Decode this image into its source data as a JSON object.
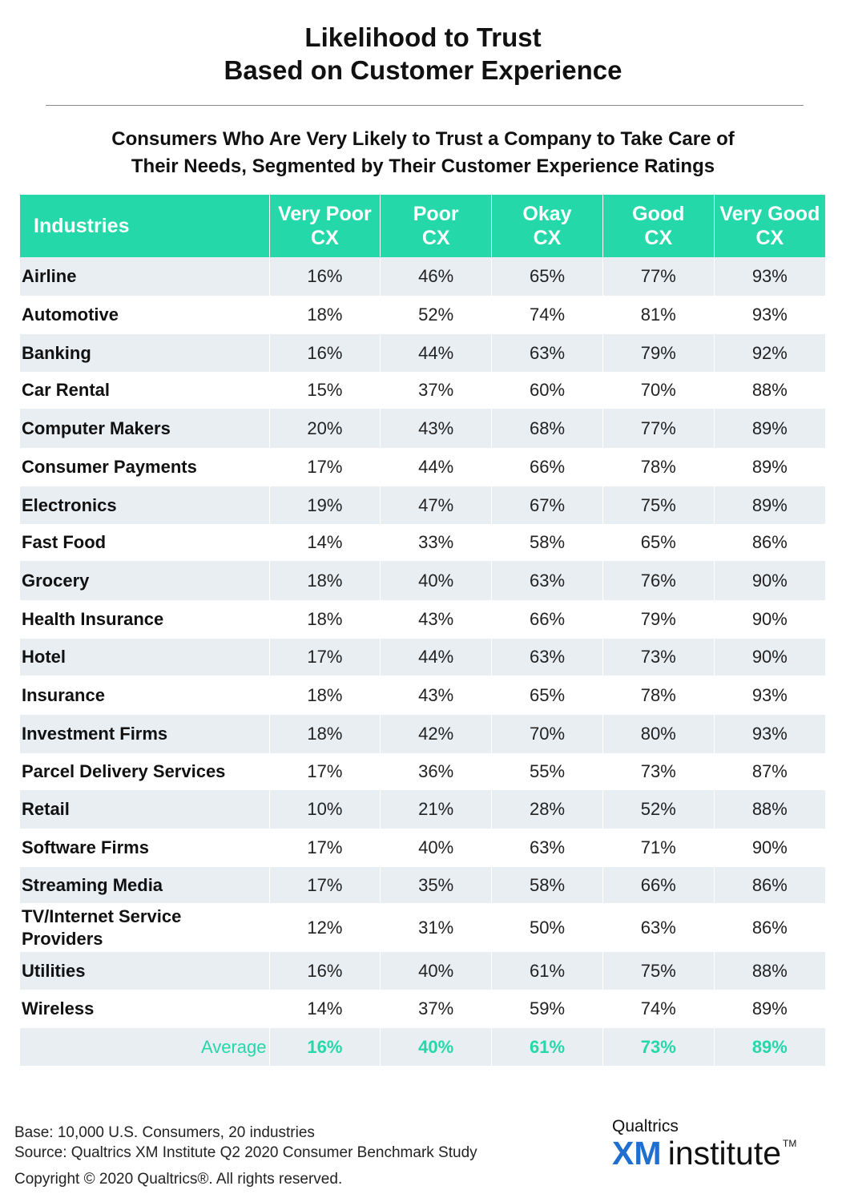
{
  "title_lines": [
    "Likelihood to Trust",
    "Based on Customer Experience"
  ],
  "subtitle_lines": [
    "Consumers Who Are Very Likely to Trust a Company to Take Care of",
    "Their Needs, Segmented by Their Customer Experience Ratings"
  ],
  "colors": {
    "accent": "#25d8a9",
    "stripe": "#e9eef3",
    "logo_blue": "#1f6fd0"
  },
  "chart_data": {
    "type": "table",
    "columns": [
      {
        "line1": "Industries",
        "line2": ""
      },
      {
        "line1": "Very Poor",
        "line2": "CX"
      },
      {
        "line1": "Poor",
        "line2": "CX"
      },
      {
        "line1": "Okay",
        "line2": "CX"
      },
      {
        "line1": "Good",
        "line2": "CX"
      },
      {
        "line1": "Very Good",
        "line2": "CX"
      }
    ],
    "rows": [
      {
        "industry": "Airline",
        "values": [
          "16%",
          "46%",
          "65%",
          "77%",
          "93%"
        ]
      },
      {
        "industry": "Automotive",
        "values": [
          "18%",
          "52%",
          "74%",
          "81%",
          "93%"
        ]
      },
      {
        "industry": "Banking",
        "values": [
          "16%",
          "44%",
          "63%",
          "79%",
          "92%"
        ]
      },
      {
        "industry": "Car Rental",
        "values": [
          "15%",
          "37%",
          "60%",
          "70%",
          "88%"
        ]
      },
      {
        "industry": "Computer Makers",
        "values": [
          "20%",
          "43%",
          "68%",
          "77%",
          "89%"
        ]
      },
      {
        "industry": "Consumer Payments",
        "values": [
          "17%",
          "44%",
          "66%",
          "78%",
          "89%"
        ]
      },
      {
        "industry": "Electronics",
        "values": [
          "19%",
          "47%",
          "67%",
          "75%",
          "89%"
        ]
      },
      {
        "industry": "Fast Food",
        "values": [
          "14%",
          "33%",
          "58%",
          "65%",
          "86%"
        ]
      },
      {
        "industry": "Grocery",
        "values": [
          "18%",
          "40%",
          "63%",
          "76%",
          "90%"
        ]
      },
      {
        "industry": "Health Insurance",
        "values": [
          "18%",
          "43%",
          "66%",
          "79%",
          "90%"
        ]
      },
      {
        "industry": "Hotel",
        "values": [
          "17%",
          "44%",
          "63%",
          "73%",
          "90%"
        ]
      },
      {
        "industry": "Insurance",
        "values": [
          "18%",
          "43%",
          "65%",
          "78%",
          "93%"
        ]
      },
      {
        "industry": "Investment Firms",
        "values": [
          "18%",
          "42%",
          "70%",
          "80%",
          "93%"
        ]
      },
      {
        "industry": "Parcel Delivery Services",
        "values": [
          "17%",
          "36%",
          "55%",
          "73%",
          "87%"
        ]
      },
      {
        "industry": "Retail",
        "values": [
          "10%",
          "21%",
          "28%",
          "52%",
          "88%"
        ]
      },
      {
        "industry": "Software Firms",
        "values": [
          "17%",
          "40%",
          "63%",
          "71%",
          "90%"
        ]
      },
      {
        "industry": "Streaming Media",
        "values": [
          "17%",
          "35%",
          "58%",
          "66%",
          "86%"
        ]
      },
      {
        "industry": "TV/Internet Service Providers",
        "values": [
          "12%",
          "31%",
          "50%",
          "63%",
          "86%"
        ]
      },
      {
        "industry": "Utilities",
        "values": [
          "16%",
          "40%",
          "61%",
          "75%",
          "88%"
        ]
      },
      {
        "industry": "Wireless",
        "values": [
          "14%",
          "37%",
          "59%",
          "74%",
          "89%"
        ]
      }
    ],
    "average": {
      "label": "Average",
      "values": [
        "16%",
        "40%",
        "61%",
        "73%",
        "89%"
      ]
    }
  },
  "footer": {
    "base": "Base: 10,000 U.S. Consumers, 20 industries",
    "source": "Source: Qualtrics XM Institute Q2 2020 Consumer Benchmark Study",
    "copyright": "Copyright © 2020 Qualtrics®.  All rights reserved."
  },
  "logo": {
    "top": "Qualtrics",
    "xm": "XM",
    "word": "institute",
    "tm": "TM"
  }
}
